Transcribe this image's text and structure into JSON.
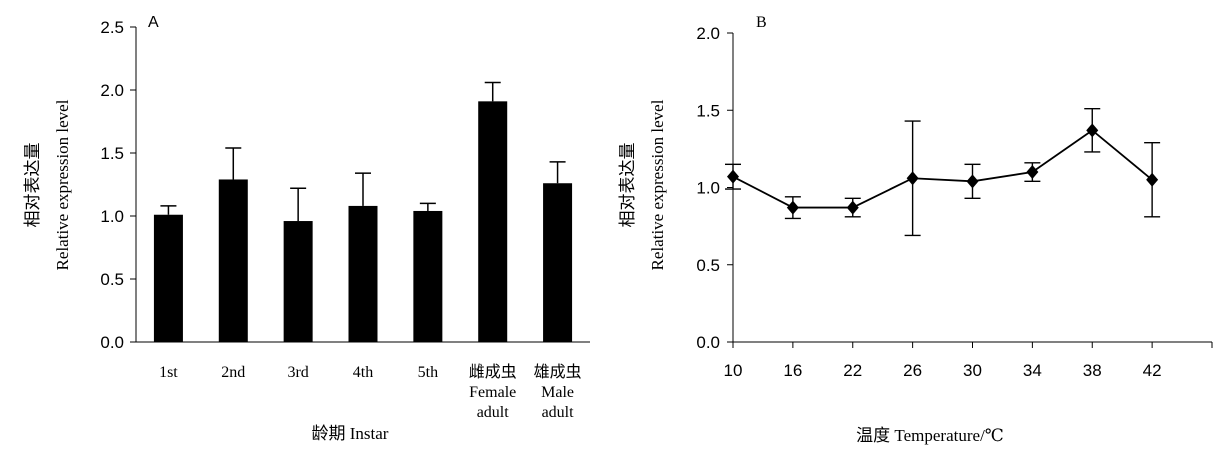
{
  "chart_data": [
    {
      "type": "bar",
      "panel_label": "A",
      "xlabel": "龄期 Instar",
      "ylabel_cn": "相对表达量",
      "ylabel_en": "Relative expression level",
      "ylim": [
        0,
        2.5
      ],
      "yticks": [
        "0.0",
        "0.5",
        "1.0",
        "1.5",
        "2.0",
        "2.5"
      ],
      "categories": [
        [
          "1st"
        ],
        [
          "2nd"
        ],
        [
          "3rd"
        ],
        [
          "4th"
        ],
        [
          "5th"
        ],
        [
          "雌成虫",
          "Female",
          "adult"
        ],
        [
          "雄成虫",
          "Male",
          "adult"
        ]
      ],
      "values": [
        1.01,
        1.29,
        0.96,
        1.08,
        1.04,
        1.91,
        1.26
      ],
      "errors": [
        0.07,
        0.25,
        0.26,
        0.26,
        0.06,
        0.15,
        0.17
      ],
      "grid": false,
      "color": "#000000"
    },
    {
      "type": "line",
      "panel_label": "B",
      "xlabel": "温度 Temperature/℃",
      "ylabel_cn": "相对表达量",
      "ylabel_en": "Relative expression level",
      "ylim": [
        0,
        2.0
      ],
      "yticks": [
        "0.0",
        "0.5",
        "1.0",
        "1.5",
        "2.0"
      ],
      "x": [
        10,
        16,
        22,
        26,
        30,
        34,
        38,
        42
      ],
      "xticks": [
        "10",
        "16",
        "22",
        "26",
        "30",
        "34",
        "38",
        "42"
      ],
      "values": [
        1.07,
        0.87,
        0.87,
        1.06,
        1.04,
        1.1,
        1.37,
        1.05
      ],
      "errors": [
        0.08,
        0.07,
        0.06,
        0.37,
        0.11,
        0.06,
        0.14,
        0.24
      ],
      "marker": "diamond",
      "grid": false,
      "color": "#000000"
    }
  ]
}
